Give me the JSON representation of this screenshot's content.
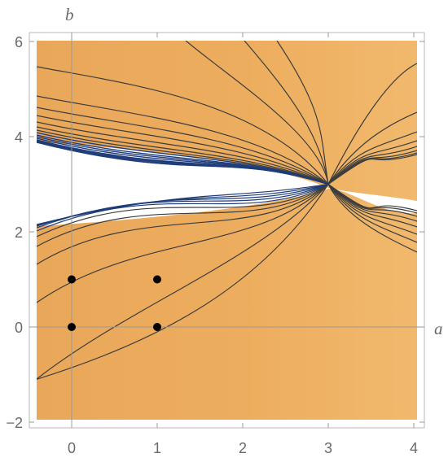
{
  "chart_data": {
    "type": "contour",
    "xlabel": "a",
    "ylabel": "b",
    "xlim": [
      -0.45,
      4.0
    ],
    "ylim": [
      -2.0,
      6.0
    ],
    "x_ticks": [
      0,
      1,
      2,
      3,
      4
    ],
    "y_ticks": [
      -2,
      0,
      2,
      4,
      6
    ],
    "x_tick_labels": [
      "0",
      "1",
      "2",
      "3",
      "4"
    ],
    "y_tick_labels": [
      "−2",
      "0",
      "2",
      "4",
      "6"
    ],
    "grid": false,
    "saddle_point": [
      3,
      3
    ],
    "points": [
      {
        "x": 0,
        "y": 0
      },
      {
        "x": 0,
        "y": 1
      },
      {
        "x": 1,
        "y": 0
      },
      {
        "x": 1,
        "y": 1
      }
    ],
    "fill_color": "#edad5d",
    "line_color": "#3d3d3d",
    "deep_line_color": "#1f3c7a"
  }
}
